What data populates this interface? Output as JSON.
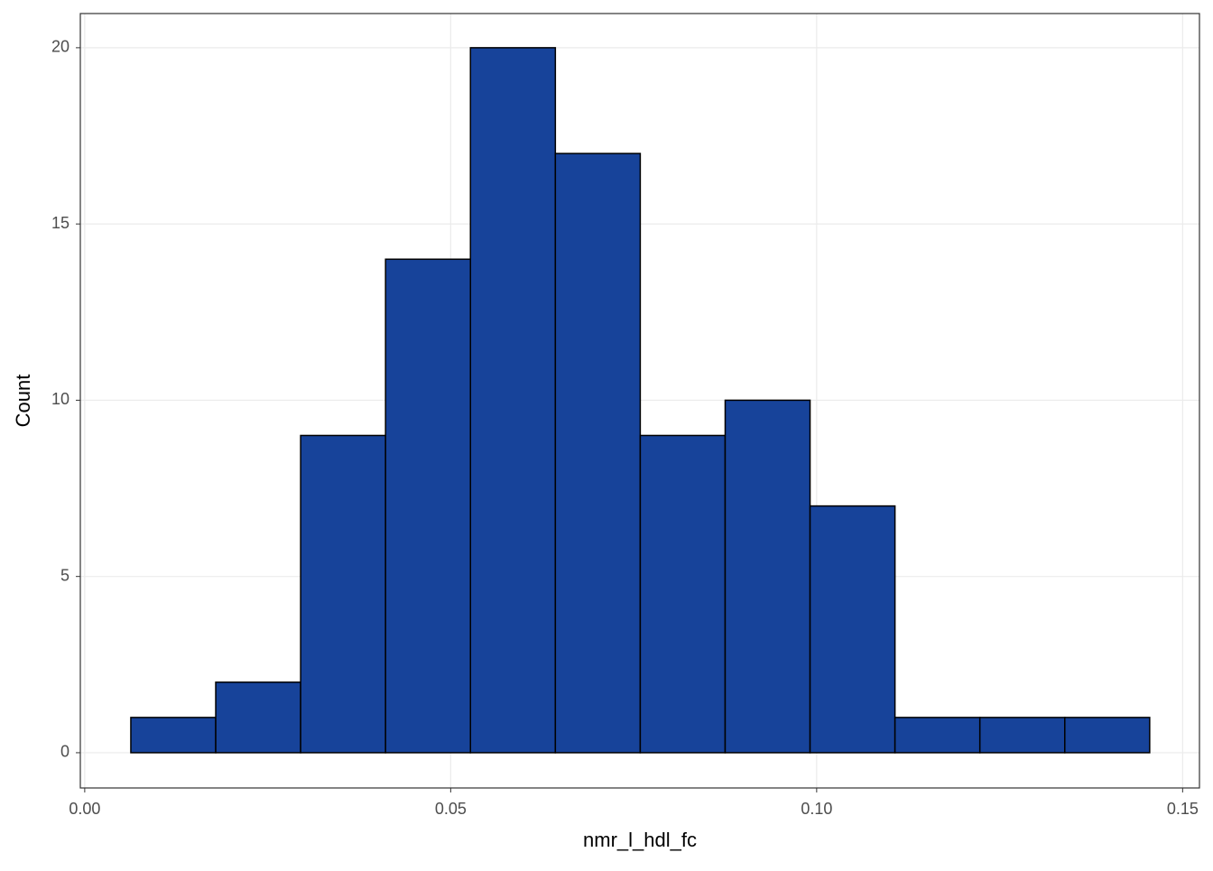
{
  "chart_data": {
    "type": "histogram",
    "x_label": "nmr_l_hdl_fc",
    "y_label": "Count",
    "bins": [
      0.0063,
      0.0179,
      0.0295,
      0.0411,
      0.0527,
      0.0643,
      0.0759,
      0.0875,
      0.0991,
      0.1107,
      0.1223,
      0.1339,
      0.1455
    ],
    "values": [
      1,
      2,
      9,
      14,
      20,
      17,
      9,
      10,
      7,
      1,
      1,
      1
    ],
    "color": "#17439a",
    "edge_color": "#000000",
    "xlim": [
      -0.0006,
      0.1523
    ],
    "ylim": [
      -1.0,
      20.97
    ],
    "xticks": [
      {
        "value": 0,
        "label": "0.00"
      },
      0.05,
      {
        "value": 0.1,
        "label": "0.10"
      },
      0.15
    ],
    "yticks": [
      0,
      5,
      10,
      15,
      20
    ],
    "grid": true
  }
}
